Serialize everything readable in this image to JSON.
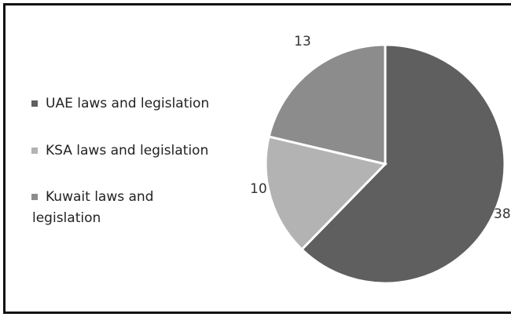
{
  "chart_data": {
    "type": "pie",
    "title": "",
    "start_angle_deg": 0,
    "legend_position": "left",
    "slices": [
      {
        "name": "UAE laws and legislation",
        "legend_lines": [
          "UAE laws and legislation"
        ],
        "value": 38,
        "label": "38",
        "color": "#5f5f5f"
      },
      {
        "name": "KSA laws and legislation",
        "legend_lines": [
          "KSA laws and legislation"
        ],
        "value": 10,
        "label": "10",
        "color": "#b3b3b3"
      },
      {
        "name": "Kuwait laws and legislation",
        "legend_lines": [
          "Kuwait laws and",
          "legislation"
        ],
        "value": 13,
        "label": "13",
        "color": "#8c8c8c"
      }
    ]
  }
}
